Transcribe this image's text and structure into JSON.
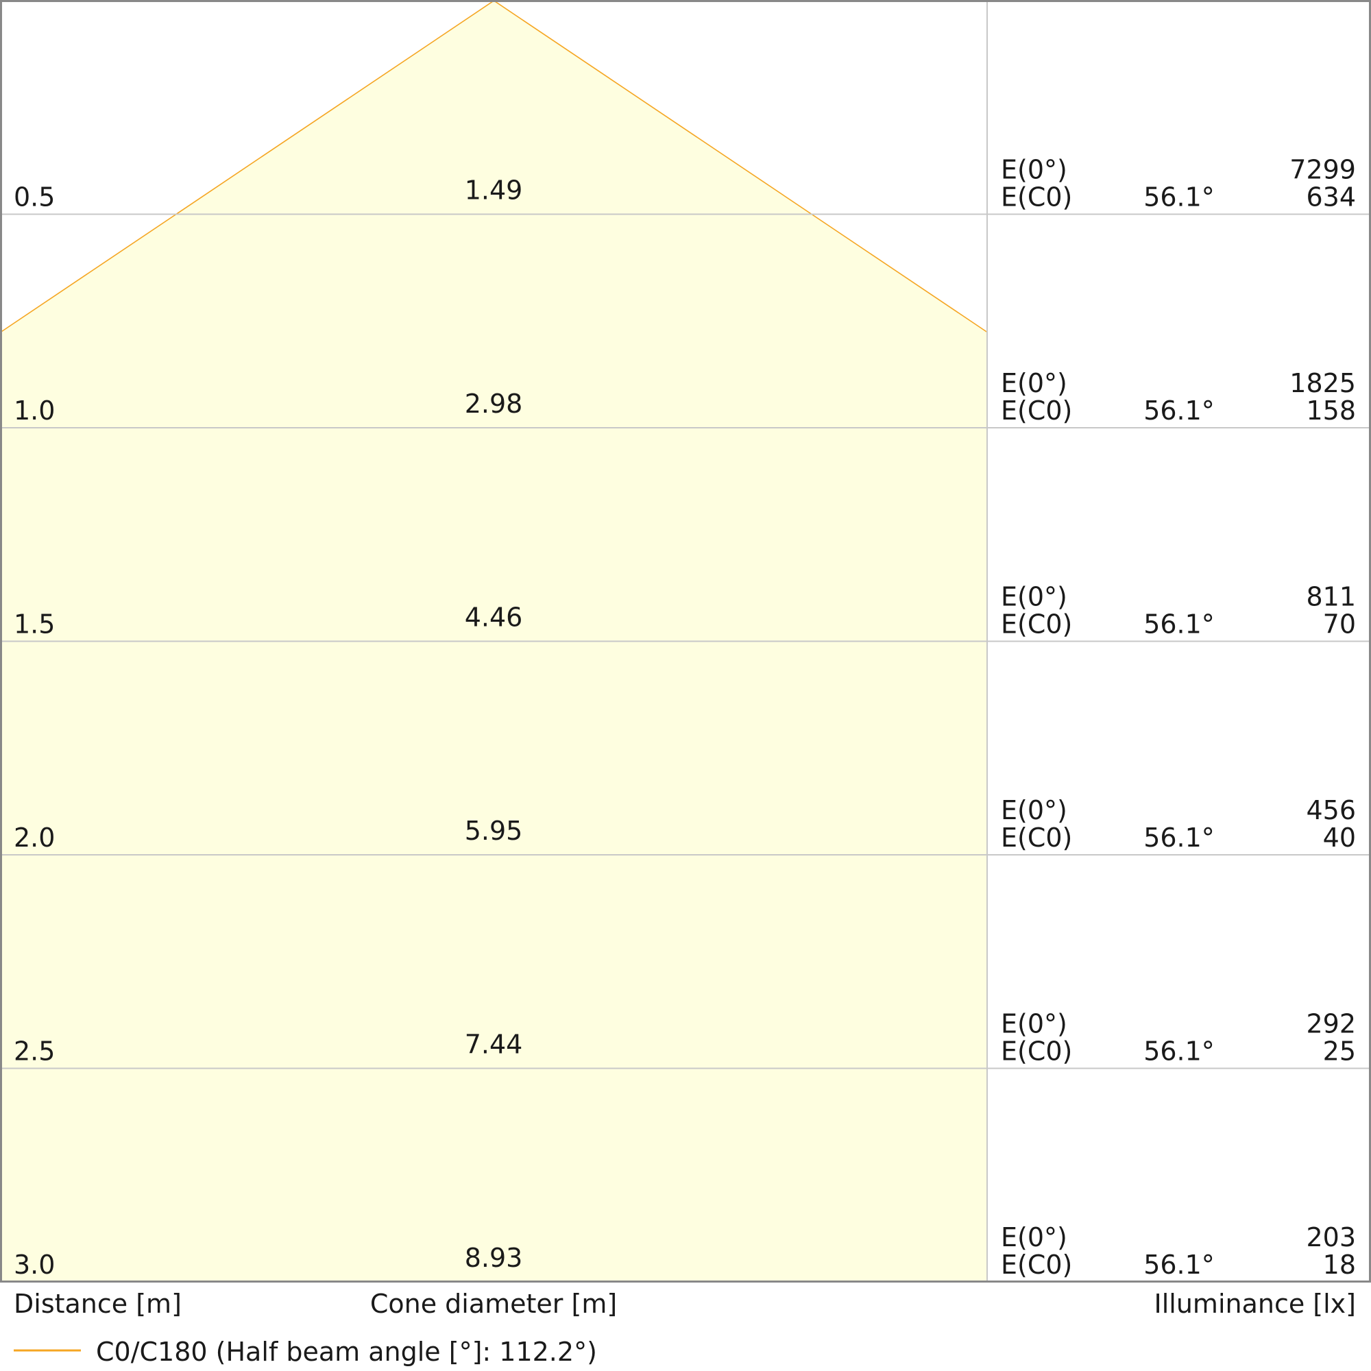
{
  "chart_data": {
    "type": "cone_diagram",
    "series": [
      {
        "name": "C0/C180 (Half beam angle [°]: 112.2°)",
        "half_beam_angle_deg": 112.2,
        "color": "#f5a623"
      }
    ],
    "fill_color": "#fefee0",
    "rows": [
      {
        "distance": "0.5",
        "cone_diameter": "1.49",
        "e0_label": "E(0°)",
        "e0": "7299",
        "ec0_label": "E(C0)",
        "angle": "56.1°",
        "ec0": "634"
      },
      {
        "distance": "1.0",
        "cone_diameter": "2.98",
        "e0_label": "E(0°)",
        "e0": "1825",
        "ec0_label": "E(C0)",
        "angle": "56.1°",
        "ec0": "158"
      },
      {
        "distance": "1.5",
        "cone_diameter": "4.46",
        "e0_label": "E(0°)",
        "e0": "811",
        "ec0_label": "E(C0)",
        "angle": "56.1°",
        "ec0": "70"
      },
      {
        "distance": "2.0",
        "cone_diameter": "5.95",
        "e0_label": "E(0°)",
        "e0": "456",
        "ec0_label": "E(C0)",
        "angle": "56.1°",
        "ec0": "40"
      },
      {
        "distance": "2.5",
        "cone_diameter": "7.44",
        "e0_label": "E(0°)",
        "e0": "292",
        "ec0_label": "E(C0)",
        "angle": "56.1°",
        "ec0": "25"
      },
      {
        "distance": "3.0",
        "cone_diameter": "8.93",
        "e0_label": "E(0°)",
        "e0": "203",
        "ec0_label": "E(C0)",
        "angle": "56.1°",
        "ec0": "18"
      }
    ],
    "xlabel": "Distance [m]",
    "cone_label": "Cone diameter [m]",
    "illuminance_label": "Illuminance [lx]",
    "legend_label": "C0/C180 (Half beam angle [°]: 112.2°)"
  }
}
